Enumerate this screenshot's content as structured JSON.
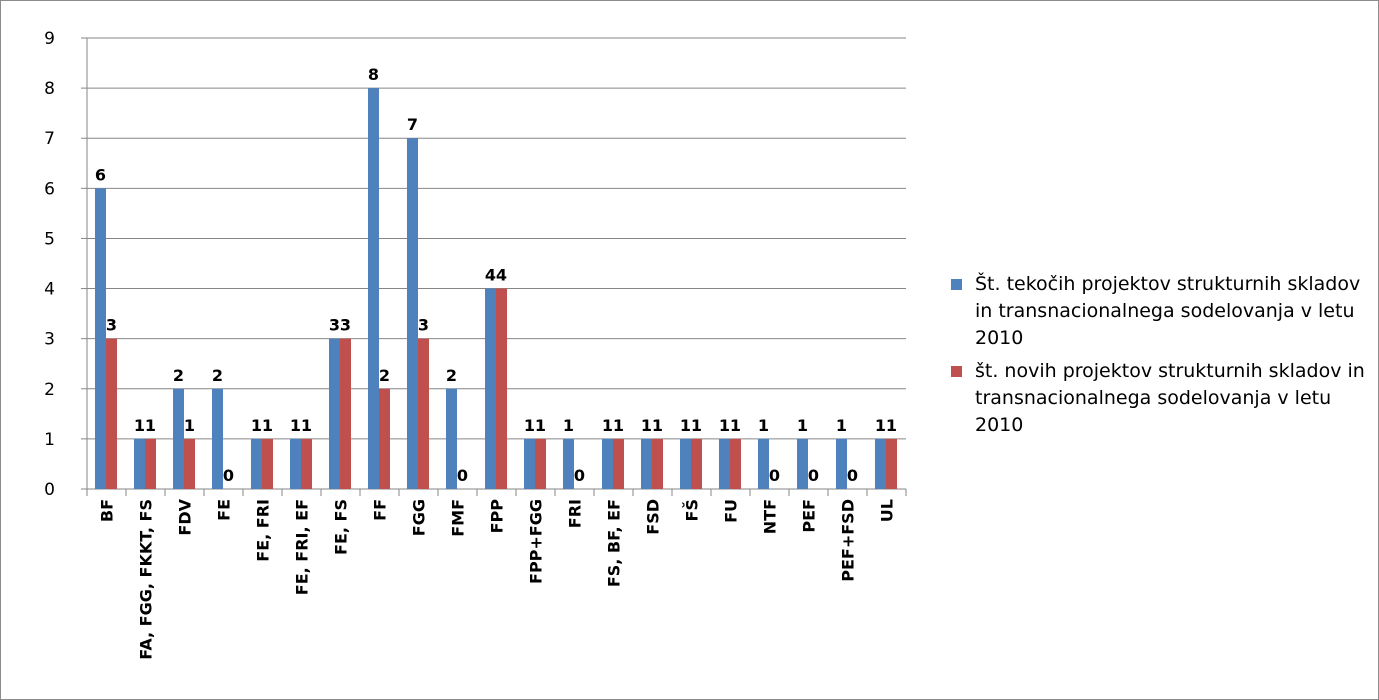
{
  "chart_data": {
    "type": "bar",
    "categories": [
      "BF",
      "FA, FGG, FKKT, FS",
      "FDV",
      "FE",
      "FE, FRI",
      "FE, FRI, EF",
      "FE, FS",
      "FF",
      "FGG",
      "FMF",
      "FPP",
      "FPP+FGG",
      "FRI",
      "FS, BF, EF",
      "FSD",
      "FŠ",
      "FU",
      "NTF",
      "PEF",
      "PEF+FSD",
      "UL"
    ],
    "series": [
      {
        "name": "Št. tekočih projektov strukturnih skladov in transnacionalnega sodelovanja v letu 2010",
        "color": "#4f81bd",
        "values": [
          6,
          1,
          2,
          2,
          1,
          1,
          3,
          8,
          7,
          2,
          4,
          1,
          1,
          1,
          1,
          1,
          1,
          1,
          1,
          1,
          1
        ],
        "labels": [
          "6",
          "1",
          "2",
          "2",
          "1",
          "1",
          "3",
          "8",
          "7",
          "2",
          "4",
          "1",
          "1",
          "1",
          "1",
          "1",
          "1",
          "1",
          "1",
          "1",
          "1"
        ]
      },
      {
        "name": "št. novih projektov strukturnih skladov in transnacionalnega sodelovanja v letu 2010",
        "color": "#c0504d",
        "values": [
          3,
          1,
          1,
          0,
          1,
          1,
          3,
          2,
          3,
          0,
          4,
          1,
          0,
          1,
          1,
          1,
          1,
          0,
          0,
          0,
          1
        ],
        "labels": [
          "3",
          "1",
          "1",
          "0",
          "1",
          "1",
          "3",
          "2",
          "3",
          "0",
          "4",
          "1",
          "0",
          "1",
          "1",
          "1",
          "1",
          "0",
          "0",
          "0",
          "1"
        ]
      }
    ],
    "ylim": [
      0,
      9
    ],
    "yticks": [
      "0",
      "1",
      "2",
      "3",
      "4",
      "5",
      "6",
      "7",
      "8",
      "9"
    ],
    "grid": true,
    "legend_position": "right"
  }
}
